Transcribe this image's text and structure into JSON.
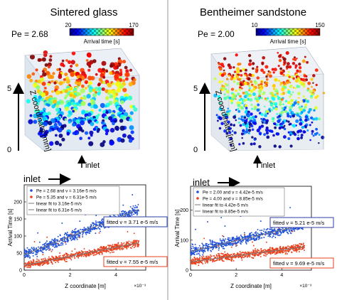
{
  "figure": {
    "panels": [
      {
        "title": "Sintered glass",
        "pe_label": "Pe = 2.68",
        "colorbar": {
          "min_label": "20",
          "max_label": "170",
          "label": "Arrival time [s]"
        },
        "volume_axis_ticks": [
          "0",
          "5"
        ],
        "volume_axis_label": "Z coordinate [mm]",
        "inlet_bottom_label": "inlet",
        "inlet_top_label": "inlet"
      },
      {
        "title": "Bentheimer sandstone",
        "pe_label": "Pe = 2.00",
        "colorbar": {
          "min_label": "10",
          "max_label": "150",
          "label": "Arrival time [s]"
        },
        "volume_axis_ticks": [
          "0",
          "5"
        ],
        "volume_axis_label": "Z coordinate [mm]",
        "inlet_bottom_label": "inlet",
        "inlet_top_label": "inlet"
      }
    ]
  },
  "chart_data": [
    {
      "type": "scatter",
      "xlabel": "Z coordinate [m]",
      "ylabel": "Arrival Time [s]",
      "x_exponent_label": "×10⁻³",
      "xlim": [
        0,
        5.3
      ],
      "ylim": [
        0,
        250
      ],
      "xticks": [
        "0",
        "2",
        "4"
      ],
      "yticks": [
        "0",
        "50",
        "100",
        "150",
        "200"
      ],
      "legend": [
        "Pe = 2.68 and v = 3.16e-5 m/s",
        "Pe = 5.35 and v = 6.31e-5 m/s",
        "linear fit to 3.16e-5 m/s",
        "linear fit to 6.31e-5 m/s"
      ],
      "colors": {
        "pe_low": "#1f4fd8",
        "pe_high": "#e8401c",
        "fit": "#7a7a7a"
      },
      "series": [
        {
          "name": "Pe = 2.68 and v = 3.16e-5 m/s",
          "color": "#1f4fd8",
          "fit_x": [
            0,
            5.0
          ],
          "fit_y": [
            45,
            178
          ],
          "spread": 26,
          "outlier_top": 240
        },
        {
          "name": "Pe = 5.35 and v = 6.31e-5 m/s",
          "color": "#e8401c",
          "fit_x": [
            0,
            5.0
          ],
          "fit_y": [
            14,
            80
          ],
          "spread": 18,
          "outlier_top": 150
        }
      ],
      "annotations": [
        {
          "text": "fitted v = 3.71 e-5 m/s",
          "color": "#2b3fae"
        },
        {
          "text": "fitted v = 7.55 e-5 m/s",
          "color": "#e8401c"
        }
      ]
    },
    {
      "type": "scatter",
      "xlabel": "Z coordinate [m]",
      "ylabel": "Arrival Time [s]",
      "x_exponent_label": "×10⁻³",
      "xlim": [
        0,
        5.3
      ],
      "ylim": [
        0,
        280
      ],
      "xticks": [
        "0",
        "2",
        "4"
      ],
      "yticks": [
        "0",
        "100",
        "200"
      ],
      "legend": [
        "Pe = 2.00 and v = 4.42e-5 m/s",
        "Pe = 4.00 and v = 8.85e-5 m/s",
        "linear fit to 4.42e-5 m/s",
        "linear fit to 8.85e-5 m/s"
      ],
      "colors": {
        "pe_low": "#1f4fd8",
        "pe_high": "#e8401c",
        "fit": "#7a7a7a"
      },
      "series": [
        {
          "name": "Pe = 2.00 and v = 4.42e-5 m/s",
          "color": "#1f4fd8",
          "fit_x": [
            0,
            5.0
          ],
          "fit_y": [
            62,
            152
          ],
          "spread": 30,
          "outlier_top": 260
        },
        {
          "name": "Pe = 4.00 and v = 8.85e-5 m/s",
          "color": "#e8401c",
          "fit_x": [
            0,
            5.0
          ],
          "fit_y": [
            28,
            78
          ],
          "spread": 22,
          "outlier_top": 160
        }
      ],
      "annotations": [
        {
          "text": "fitted v = 5.21 e-5 m/s",
          "color": "#2b3fae"
        },
        {
          "text": "fitted v = 9.69 e-5 m/s",
          "color": "#e8401c"
        }
      ]
    }
  ]
}
